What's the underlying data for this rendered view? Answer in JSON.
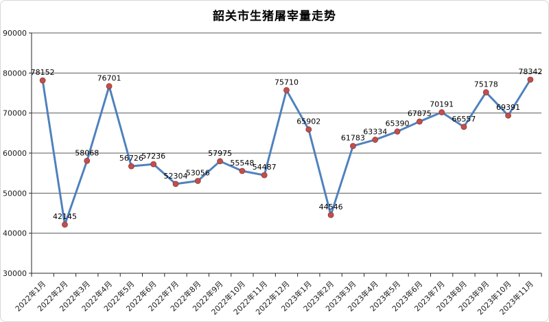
{
  "chart_frame": {
    "background": "#ffffff",
    "border_color": "#d7d7d7"
  },
  "chart_data": {
    "type": "line",
    "title": "韶关市生猪屠宰量走势",
    "categories": [
      "2022年1月",
      "2022年2月",
      "2022年3月",
      "2022年4月",
      "2022年5月",
      "2022年6月",
      "2022年7月",
      "2022年8月",
      "2022年9月",
      "2022年10月",
      "2022年11月",
      "2022年12月",
      "2023年1月",
      "2023年2月",
      "2023年3月",
      "2023年4月",
      "2023年5月",
      "2023年6月",
      "2023年7月",
      "2023年8月",
      "2023年9月",
      "2023年10月",
      "2023年11月"
    ],
    "values": [
      78152,
      42145,
      58068,
      76701,
      56726,
      57236,
      52304,
      53056,
      57975,
      55548,
      54487,
      75710,
      65902,
      44546,
      61783,
      63334,
      65390,
      67875,
      70191,
      66557,
      75178,
      69391,
      78342
    ],
    "ylim": [
      30000,
      90000
    ],
    "ytick_step": 10000,
    "ytick_labels": [
      "30000",
      "40000",
      "50000",
      "60000",
      "70000",
      "80000",
      "90000"
    ],
    "xlabel": "",
    "ylabel": "",
    "grid": "horizontal",
    "legend_position": "none",
    "data_labels_visible": true,
    "colors": {
      "line": "#4F81BD",
      "marker_fill": "#C0504D",
      "marker_stroke": "#943634",
      "gridline": "#595959",
      "axis": "#262626",
      "tick_text": "#1c1c1c",
      "label_text": "#000000"
    }
  }
}
